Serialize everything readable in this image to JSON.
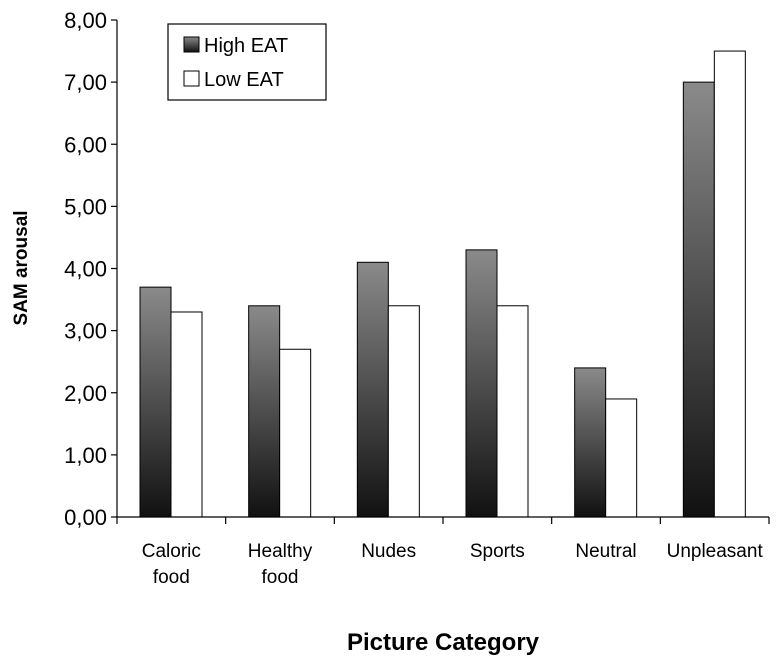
{
  "chart_data": {
    "type": "bar",
    "categories": [
      [
        "Caloric",
        "food"
      ],
      [
        "Healthy",
        "food"
      ],
      [
        "Nudes"
      ],
      [
        "Sports"
      ],
      [
        "Neutral"
      ],
      [
        "Unpleasant"
      ]
    ],
    "series": [
      {
        "name": "High EAT",
        "values": [
          3.7,
          3.4,
          4.1,
          4.3,
          2.4,
          7.0
        ],
        "fill": "gradient-dark"
      },
      {
        "name": "Low EAT",
        "values": [
          3.3,
          2.7,
          3.4,
          3.4,
          1.9,
          7.5
        ],
        "fill": "#ffffff"
      }
    ],
    "title": "",
    "xlabel": "Picture Category",
    "ylabel": "SAM arousal",
    "ylim": [
      0,
      8
    ],
    "yticks": [
      "0,00",
      "1,00",
      "2,00",
      "3,00",
      "4,00",
      "5,00",
      "6,00",
      "7,00",
      "8,00"
    ],
    "grid": false,
    "legend_position": "top-left",
    "colors": {
      "gradient_top": "#8a8a8a",
      "gradient_bottom": "#111111",
      "outline": "#000000"
    }
  }
}
